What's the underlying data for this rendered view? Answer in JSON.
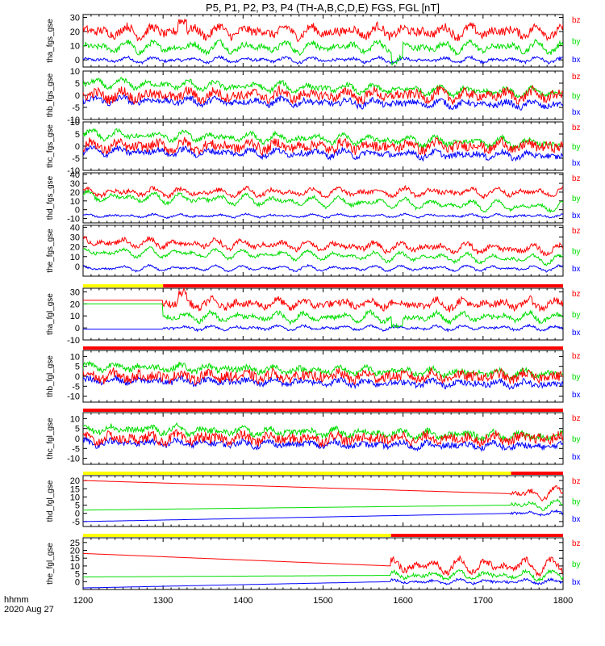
{
  "colors": {
    "bx": "#0000ff",
    "by": "#00dd00",
    "bz": "#ff0000",
    "flag_red": "#ff0000",
    "flag_yellow": "#ffff00",
    "flag_black": "#000000"
  },
  "footer": {
    "line1": "hhmm",
    "line2": "2020 Aug 27"
  },
  "chart_data": {
    "type": "line",
    "title": "P5, P1, P2, P3, P4 (TH-A,B,C,D,E) FGS, FGL [nT]",
    "xlim": [
      1200,
      1800
    ],
    "x_ticks": [
      1200,
      1300,
      1400,
      1500,
      1600,
      1700,
      1800
    ],
    "xlabel": "",
    "legend": [
      "bz",
      "by",
      "bx"
    ],
    "legend_placement": "right",
    "panels": [
      {
        "ylabel": "tha_fgs_gse",
        "ylim": [
          -5,
          32
        ],
        "yticks": [
          0,
          10,
          20,
          30
        ],
        "bz": {
          "base": 20,
          "amp": 4,
          "hf": 3,
          "spike": true
        },
        "by": {
          "base": 9,
          "amp": 4,
          "hf": 2,
          "dip": true
        },
        "bx": {
          "base": 0,
          "amp": 2,
          "hf": 1
        }
      },
      {
        "ylabel": "thb_fgs_gse",
        "ylim": [
          -10,
          10
        ],
        "yticks": [
          -10,
          -5,
          0,
          5,
          10
        ],
        "bz": {
          "base": 0,
          "amp": 2,
          "hf": 2
        },
        "by": {
          "base": 5,
          "amp": 2,
          "hf": 1,
          "trend": -4
        },
        "bx": {
          "base": -2,
          "amp": 1.5,
          "hf": 1.2,
          "trend": -2
        }
      },
      {
        "ylabel": "thc_fgs_gse",
        "ylim": [
          -10,
          10
        ],
        "yticks": [
          -10,
          -5,
          0,
          5,
          10
        ],
        "bz": {
          "base": 0,
          "amp": 2,
          "hf": 2
        },
        "by": {
          "base": 5,
          "amp": 2,
          "hf": 1,
          "trend": -4
        },
        "bx": {
          "base": -2,
          "amp": 1.5,
          "hf": 1.2,
          "trend": -2
        }
      },
      {
        "ylabel": "thd_fgs_gse",
        "ylim": [
          -15,
          42
        ],
        "yticks": [
          -10,
          0,
          10,
          20,
          30,
          40
        ],
        "bz": {
          "base": 20,
          "amp": 5,
          "hf": 2.5
        },
        "by": {
          "base": 15,
          "amp": 6,
          "hf": 2,
          "trend": -12
        },
        "bx": {
          "base": -7,
          "amp": 2,
          "hf": 1
        }
      },
      {
        "ylabel": "the_fgs_gse",
        "ylim": [
          -10,
          42
        ],
        "yticks": [
          0,
          10,
          20,
          30,
          40
        ],
        "bz": {
          "base": 25,
          "amp": 5,
          "hf": 2.5,
          "trend": -8
        },
        "by": {
          "base": 15,
          "amp": 5,
          "hf": 1.5,
          "trend": -8
        },
        "bx": {
          "base": -2,
          "amp": 3,
          "hf": 1
        }
      },
      {
        "ylabel": "tha_fgl_gse",
        "ylim": [
          -10,
          33
        ],
        "yticks": [
          -10,
          0,
          10,
          20,
          30
        ],
        "flag_top": [
          [
            1200,
            1300,
            "#ffff00"
          ],
          [
            1300,
            1800,
            "#ff0000"
          ]
        ],
        "gap_before": 1300,
        "bz": {
          "base": 20,
          "amp": 4,
          "hf": 3,
          "spike": true
        },
        "by": {
          "base": 9,
          "amp": 4,
          "hf": 2,
          "dip": true
        },
        "bx": {
          "base": 0,
          "amp": 2,
          "hf": 1
        }
      },
      {
        "ylabel": "thb_fgl_gse",
        "ylim": [
          -13,
          13
        ],
        "yticks": [
          -10,
          -5,
          0,
          5,
          10
        ],
        "flag_top": [
          [
            1200,
            1800,
            "#ff0000"
          ]
        ],
        "bz": {
          "base": 0,
          "amp": 2,
          "hf": 2.5
        },
        "by": {
          "base": 5,
          "amp": 2,
          "hf": 1.5,
          "trend": -4
        },
        "bx": {
          "base": -2,
          "amp": 1.5,
          "hf": 1.5,
          "trend": -2
        }
      },
      {
        "ylabel": "thc_fgl_gse",
        "ylim": [
          -13,
          13
        ],
        "yticks": [
          -10,
          -5,
          0,
          5,
          10
        ],
        "flag_top": [
          [
            1200,
            1800,
            "#ff0000"
          ]
        ],
        "bz": {
          "base": 0,
          "amp": 2,
          "hf": 2.5
        },
        "by": {
          "base": 5,
          "amp": 2,
          "hf": 1.5,
          "trend": -4
        },
        "bx": {
          "base": -2,
          "amp": 1.5,
          "hf": 1.5,
          "trend": -2
        }
      },
      {
        "ylabel": "thd_fgl_gse",
        "ylim": [
          -8,
          23
        ],
        "yticks": [
          -5,
          0,
          5,
          10,
          15,
          20
        ],
        "flag_top": [
          [
            1200,
            1735,
            "#ffff00"
          ],
          [
            1735,
            1800,
            "#ff0000"
          ]
        ],
        "linear_until": 1735,
        "bz": {
          "base": 20,
          "end": 12,
          "amp": 4,
          "hf": 1.5
        },
        "by": {
          "base": 2,
          "end": 5,
          "amp": 3,
          "hf": 1
        },
        "bx": {
          "base": -5,
          "end": 0,
          "amp": 1.5,
          "hf": 0.8
        }
      },
      {
        "ylabel": "the_fgl_gse",
        "ylim": [
          -5,
          28
        ],
        "yticks": [
          0,
          5,
          10,
          15,
          20,
          25
        ],
        "flag_top": [
          [
            1200,
            1585,
            "#ffff00"
          ],
          [
            1585,
            1800,
            "#ff0000"
          ]
        ],
        "linear_until": 1585,
        "bz": {
          "base": 18,
          "end": 10,
          "amp": 5,
          "hf": 2
        },
        "by": {
          "base": 3,
          "end": 4,
          "amp": 3,
          "hf": 1.2
        },
        "bx": {
          "base": -4,
          "end": 0,
          "amp": 1.5,
          "hf": 0.8
        }
      }
    ]
  }
}
